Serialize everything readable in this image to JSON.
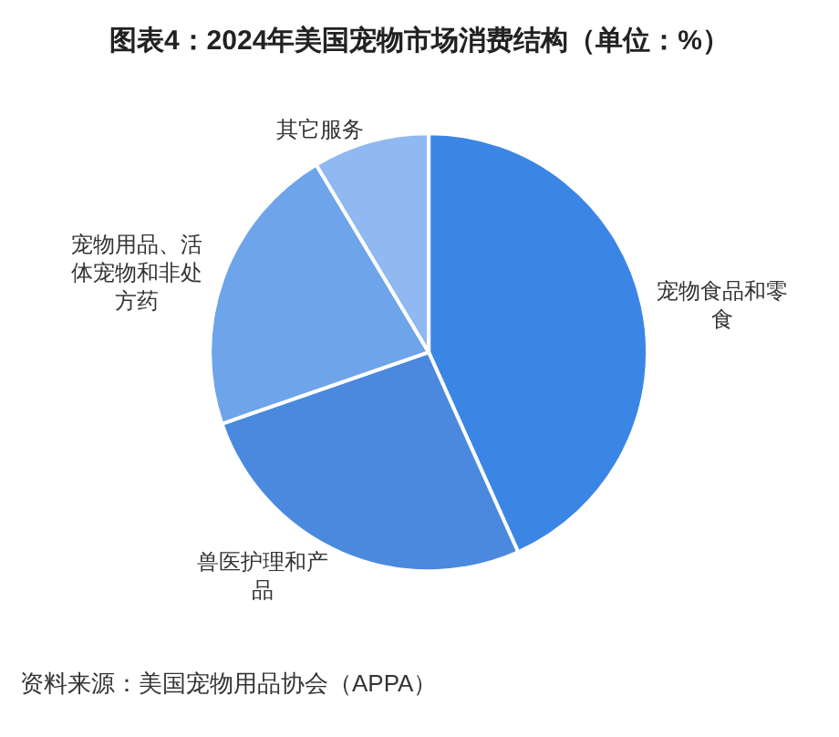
{
  "chart_data": {
    "type": "pie",
    "title": "图表4：2024年美国宠物市场消费结构（单位：%）",
    "categories": [
      "宠物食品和零食",
      "兽医护理和产品",
      "宠物用品、活体宠物和非处方药",
      "其它服务"
    ],
    "values": [
      43.3,
      26.4,
      21.7,
      8.6
    ],
    "colors": [
      "#3b86e5",
      "#4a89de",
      "#6ea4ea",
      "#8fb9f0"
    ],
    "annotations": [
      "资料来源：美国宠物用品协会（APPA）"
    ]
  }
}
